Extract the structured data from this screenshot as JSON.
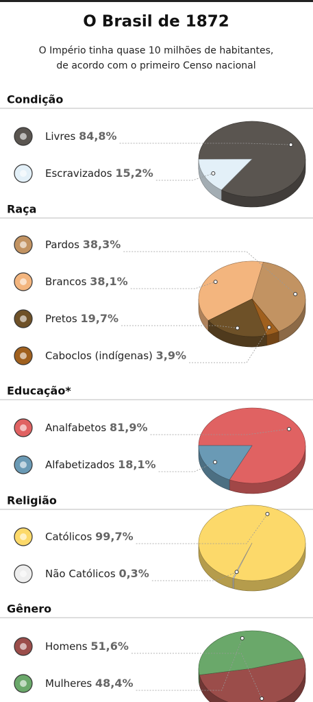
{
  "title": "O Brasil de 1872",
  "subtitle": [
    "O Império tinha quase 10 milhões de habitantes,",
    "de acordo com o primeiro Censo nacional"
  ],
  "chart_data": [
    {
      "type": "pie",
      "title": "Condição",
      "categories": [
        "Livres",
        "Escravizados"
      ],
      "values": [
        84.8,
        15.2
      ],
      "value_labels": [
        "84,8%",
        "15,2%"
      ],
      "colors": [
        "#5a5550",
        "#e3f0f8"
      ]
    },
    {
      "type": "pie",
      "title": "Raça",
      "categories": [
        "Pardos",
        "Brancos",
        "Pretos",
        "Caboclos (indígenas)"
      ],
      "values": [
        38.3,
        38.1,
        19.7,
        3.9
      ],
      "value_labels": [
        "38,3%",
        "38,1%",
        "19,7%",
        "3,9%"
      ],
      "colors": [
        "#c29362",
        "#f3b57e",
        "#6e5128",
        "#a0601e"
      ]
    },
    {
      "type": "pie",
      "title": "Educação*",
      "categories": [
        "Analfabetos",
        "Alfabetizados"
      ],
      "values": [
        81.9,
        18.1
      ],
      "value_labels": [
        "81,9%",
        "18,1%"
      ],
      "colors": [
        "#e06262",
        "#6a9ab5"
      ]
    },
    {
      "type": "pie",
      "title": "Religião",
      "categories": [
        "Católicos",
        "Não Católicos"
      ],
      "values": [
        99.7,
        0.3
      ],
      "value_labels": [
        "99,7%",
        "0,3%"
      ],
      "colors": [
        "#fcd96a",
        "#eeeeee"
      ]
    },
    {
      "type": "pie",
      "title": "Gênero",
      "categories": [
        "Homens",
        "Mulheres"
      ],
      "values": [
        51.6,
        48.4
      ],
      "value_labels": [
        "51,6%",
        "48,4%"
      ],
      "colors": [
        "#9b4d4a",
        "#6aa86a"
      ]
    }
  ]
}
